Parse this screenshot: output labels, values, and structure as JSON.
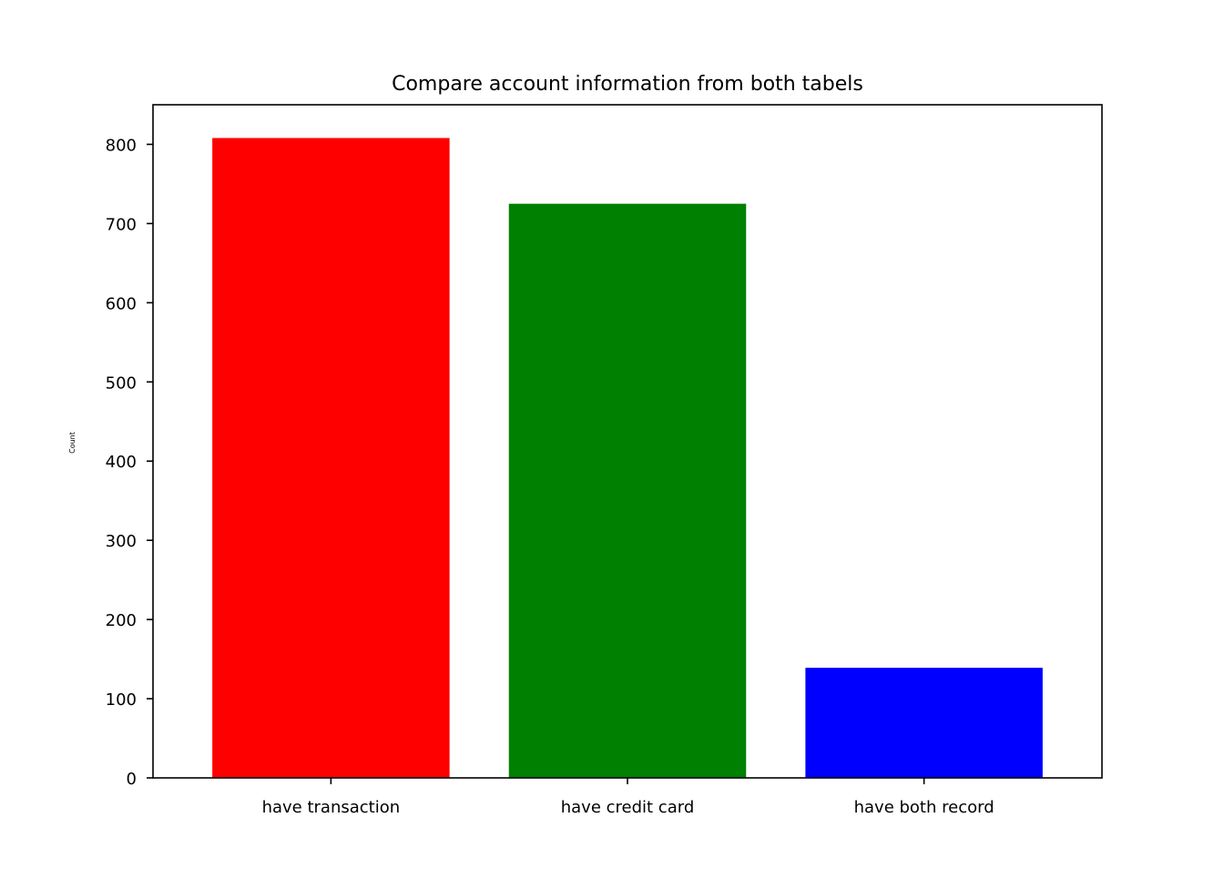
{
  "chart_data": {
    "type": "bar",
    "title": "Compare account information from both tabels",
    "xlabel": "",
    "ylabel": "Count",
    "categories": [
      "have transaction",
      "have credit card",
      "have both record"
    ],
    "values": [
      808,
      725,
      139
    ],
    "colors": [
      "#ff0000",
      "#008000",
      "#0000ff"
    ],
    "ylim": [
      0,
      850
    ],
    "yticks": [
      0,
      100,
      200,
      300,
      400,
      500,
      600,
      700,
      800
    ],
    "grid": false,
    "legend": false
  }
}
